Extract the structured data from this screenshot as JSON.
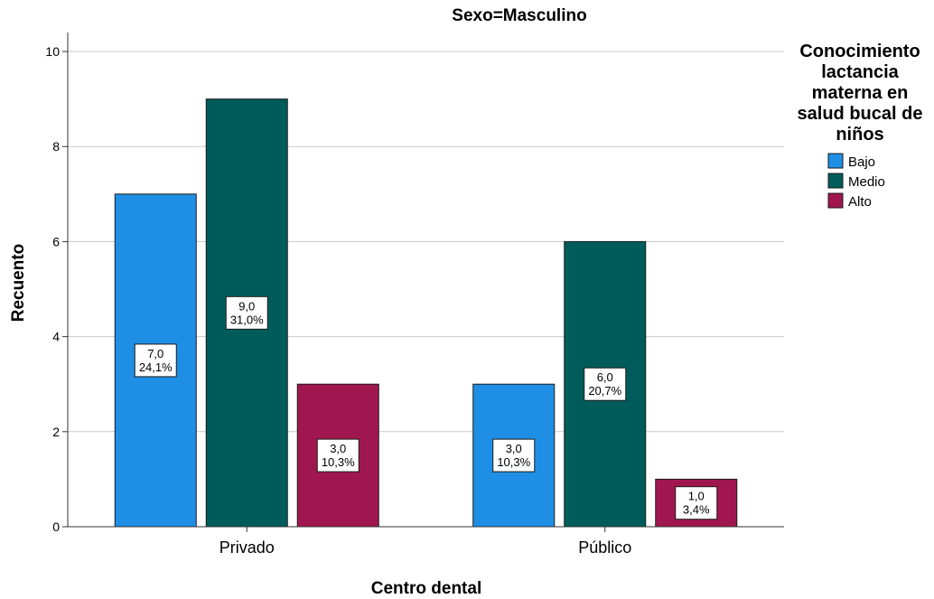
{
  "chart_data": {
    "type": "bar",
    "title": "Sexo=Masculino",
    "xlabel": "Centro dental",
    "ylabel": "Recuento",
    "categories": [
      "Privado",
      "Público"
    ],
    "ylim": [
      0,
      10.4
    ],
    "yticks": [
      "0",
      "2",
      "4",
      "6",
      "8",
      "10"
    ],
    "grid": true,
    "legend": {
      "position": "right",
      "title_lines": [
        "Conocimiento",
        "lactancia",
        "materna en",
        "salud bucal de",
        "niños"
      ]
    },
    "series": [
      {
        "name": "Bajo",
        "color": "#1f8fe5",
        "values": [
          7,
          3
        ],
        "labels": [
          [
            "7,0",
            "24,1%"
          ],
          [
            "3,0",
            "10,3%"
          ]
        ]
      },
      {
        "name": "Medio",
        "color": "#005c5a",
        "values": [
          9,
          6
        ],
        "labels": [
          [
            "9,0",
            "31,0%"
          ],
          [
            "6,0",
            "20,7%"
          ]
        ]
      },
      {
        "name": "Alto",
        "color": "#a0174f",
        "values": [
          3,
          1
        ],
        "labels": [
          [
            "3,0",
            "10,3%"
          ],
          [
            "1,0",
            "3,4%"
          ]
        ]
      }
    ]
  }
}
